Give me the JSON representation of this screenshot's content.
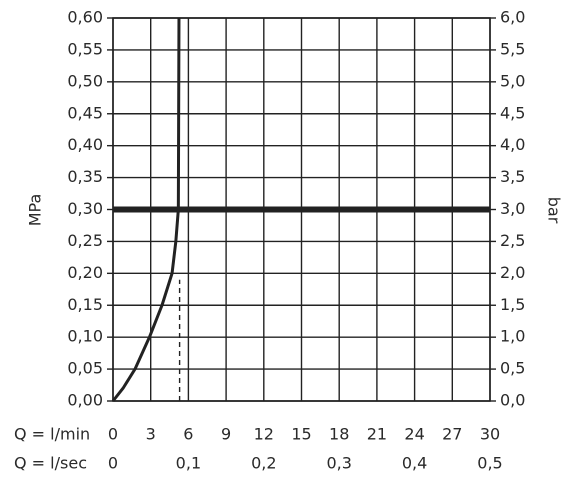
{
  "chart_data": {
    "type": "line",
    "y_label": "MPa",
    "y2_label": "bar",
    "x_label": "Q = l/min",
    "x2_label": "Q = l/sec",
    "xlim": [
      0,
      30
    ],
    "xticks": [
      0,
      3,
      6,
      9,
      12,
      15,
      18,
      21,
      24,
      27,
      30
    ],
    "x2lim": [
      0,
      0.5
    ],
    "x2ticks": [
      {
        "value": 0,
        "label": "0"
      },
      {
        "value": 0.1,
        "label": "0,1"
      },
      {
        "value": 0.2,
        "label": "0,2"
      },
      {
        "value": 0.3,
        "label": "0,3"
      },
      {
        "value": 0.4,
        "label": "0,4"
      },
      {
        "value": 0.5,
        "label": "0,5"
      }
    ],
    "ylim": [
      0,
      0.6
    ],
    "yticks": [
      {
        "value": 0,
        "label": "0,00"
      },
      {
        "value": 0.05,
        "label": "0,05"
      },
      {
        "value": 0.1,
        "label": "0,10"
      },
      {
        "value": 0.15,
        "label": "0,15"
      },
      {
        "value": 0.2,
        "label": "0,20"
      },
      {
        "value": 0.25,
        "label": "0,25"
      },
      {
        "value": 0.3,
        "label": "0,30"
      },
      {
        "value": 0.35,
        "label": "0,35"
      },
      {
        "value": 0.4,
        "label": "0,40"
      },
      {
        "value": 0.45,
        "label": "0,45"
      },
      {
        "value": 0.5,
        "label": "0,50"
      },
      {
        "value": 0.55,
        "label": "0,55"
      },
      {
        "value": 0.6,
        "label": "0,60"
      }
    ],
    "y2lim": [
      0,
      6
    ],
    "y2ticks": [
      {
        "value": 0,
        "label": "0,0"
      },
      {
        "value": 0.5,
        "label": "0,5"
      },
      {
        "value": 1,
        "label": "1,0"
      },
      {
        "value": 1.5,
        "label": "1,5"
      },
      {
        "value": 2,
        "label": "2,0"
      },
      {
        "value": 2.5,
        "label": "2,5"
      },
      {
        "value": 3,
        "label": "3,0"
      },
      {
        "value": 3.5,
        "label": "3,5"
      },
      {
        "value": 4,
        "label": "4,0"
      },
      {
        "value": 4.5,
        "label": "4,5"
      },
      {
        "value": 5,
        "label": "5,0"
      },
      {
        "value": 5.5,
        "label": "5,5"
      },
      {
        "value": 6,
        "label": "6,0"
      }
    ],
    "grid": true,
    "reference_line": {
      "y": 0.3,
      "color": "#222"
    },
    "series": [
      {
        "color": "#222",
        "x": [
          0,
          0.8,
          1.75,
          2.9,
          3.9,
          4.7,
          5.0,
          5.2,
          5.25
        ],
        "values": [
          0,
          0.02,
          0.05,
          0.1,
          0.15,
          0.2,
          0.25,
          0.3,
          0.6
        ]
      },
      {
        "color": "#222",
        "dashed": true,
        "x": [
          5.3,
          5.3
        ],
        "values": [
          0,
          0.19
        ]
      }
    ]
  }
}
